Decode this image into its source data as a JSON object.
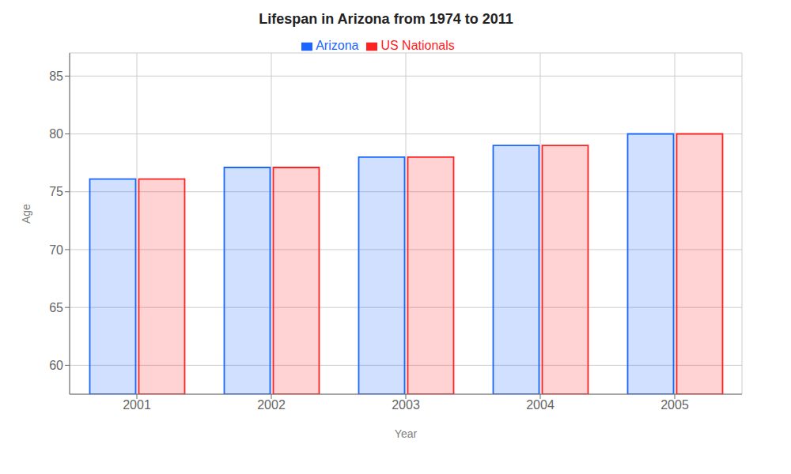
{
  "chart_data": {
    "type": "bar",
    "title": "Lifespan in Arizona from 1974 to 2011",
    "x_label": "Year",
    "y_label": "Age",
    "categories": [
      "2001",
      "2002",
      "2003",
      "2004",
      "2005"
    ],
    "series": [
      {
        "name": "Arizona",
        "color": "#1a66ff",
        "values": [
          76.1,
          77.1,
          78.0,
          79.0,
          80.0
        ]
      },
      {
        "name": "US Nationals",
        "color": "#ff2222",
        "values": [
          76.1,
          77.1,
          78.0,
          79.0,
          80.0
        ]
      }
    ],
    "ylim": [
      57.5,
      87
    ],
    "yticks": [
      60,
      65,
      70,
      75,
      80,
      85
    ],
    "grid": true,
    "legend": "top"
  }
}
